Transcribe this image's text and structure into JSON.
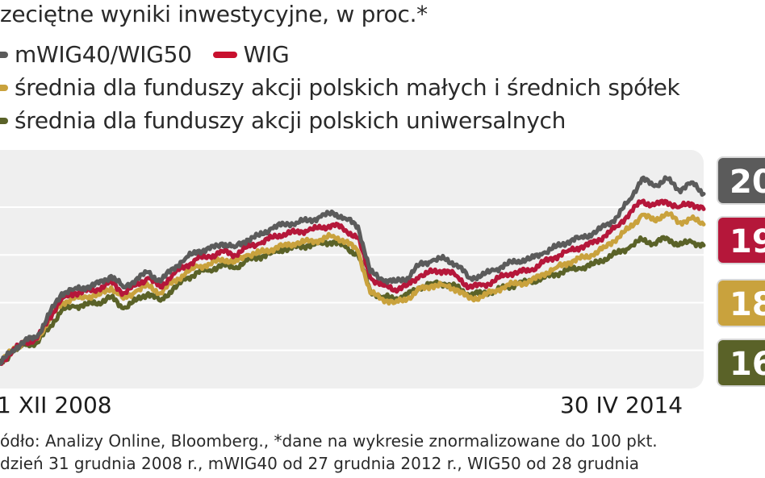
{
  "chart_data": {
    "type": "line",
    "title": "zeciętne wyniki inwestycyjne, w proc.*",
    "x_start_label": "1 XII 2008",
    "x_end_label": "30 IV 2014",
    "grid": true,
    "legend": "top-left",
    "series": [
      {
        "name": "mWIG40/WIG50",
        "color": "#5b5b5b",
        "end_value_label": "20",
        "values": [
          93,
          100,
          105,
          107,
          119,
          130,
          132,
          133,
          135,
          139,
          133,
          137,
          141,
          136,
          143,
          148,
          152,
          153,
          156,
          154,
          158,
          160,
          164,
          166,
          167,
          168,
          170,
          172,
          169,
          165,
          141,
          137,
          136,
          138,
          145,
          147,
          148,
          145,
          138,
          139,
          142,
          145,
          147,
          148,
          151,
          154,
          157,
          159,
          161,
          165,
          170,
          179,
          190,
          186,
          190,
          184,
          188,
          182
        ]
      },
      {
        "name": "WIG",
        "color": "#b5173a",
        "end_value_label": "19",
        "values": [
          93,
          100,
          104,
          106,
          117,
          127,
          130,
          131,
          132,
          136,
          130,
          134,
          138,
          133,
          140,
          144,
          148,
          149,
          152,
          150,
          154,
          156,
          159,
          161,
          162,
          163,
          164,
          166,
          163,
          159,
          138,
          134,
          132,
          134,
          139,
          141,
          142,
          139,
          133,
          134,
          136,
          140,
          141,
          142,
          146,
          149,
          152,
          154,
          156,
          160,
          165,
          172,
          178,
          176,
          178,
          175,
          177,
          174
        ]
      },
      {
        "name": "średnia dla funduszy akcji polskich małych i średnich spółek",
        "color": "#c9a23d",
        "end_value_label": "18",
        "values": [
          93,
          100,
          105,
          106,
          116,
          125,
          127,
          128,
          129,
          133,
          127,
          131,
          134,
          130,
          136,
          140,
          144,
          145,
          148,
          146,
          150,
          151,
          153,
          155,
          156,
          157,
          158,
          160,
          157,
          152,
          130,
          127,
          125,
          127,
          132,
          134,
          134,
          132,
          127,
          128,
          131,
          134,
          135,
          136,
          140,
          143,
          146,
          148,
          150,
          154,
          159,
          164,
          171,
          168,
          172,
          167,
          169,
          166
        ]
      },
      {
        "name": "średnia dla funduszy akcji polskich uniwersalnych",
        "color": "#5a6228",
        "end_value_label": "16",
        "values": [
          93,
          99,
          103,
          104,
          112,
          121,
          123,
          124,
          125,
          128,
          122,
          126,
          130,
          126,
          132,
          137,
          141,
          142,
          145,
          143,
          147,
          149,
          151,
          153,
          154,
          155,
          156,
          157,
          154,
          150,
          131,
          128,
          127,
          129,
          133,
          135,
          135,
          133,
          129,
          130,
          131,
          133,
          135,
          136,
          138,
          140,
          142,
          143,
          145,
          148,
          151,
          154,
          158,
          156,
          159,
          155,
          157,
          155
        ]
      }
    ]
  },
  "source": {
    "line1": "ódło: Analizy Online, Bloomberg., *dane na wykresie znormalizowane do 100 pkt.",
    "line2": "dzień 31 grudnia 2008 r., mWIG40 od 27 grudnia 2012 r., WIG50 od 28 grudnia"
  }
}
